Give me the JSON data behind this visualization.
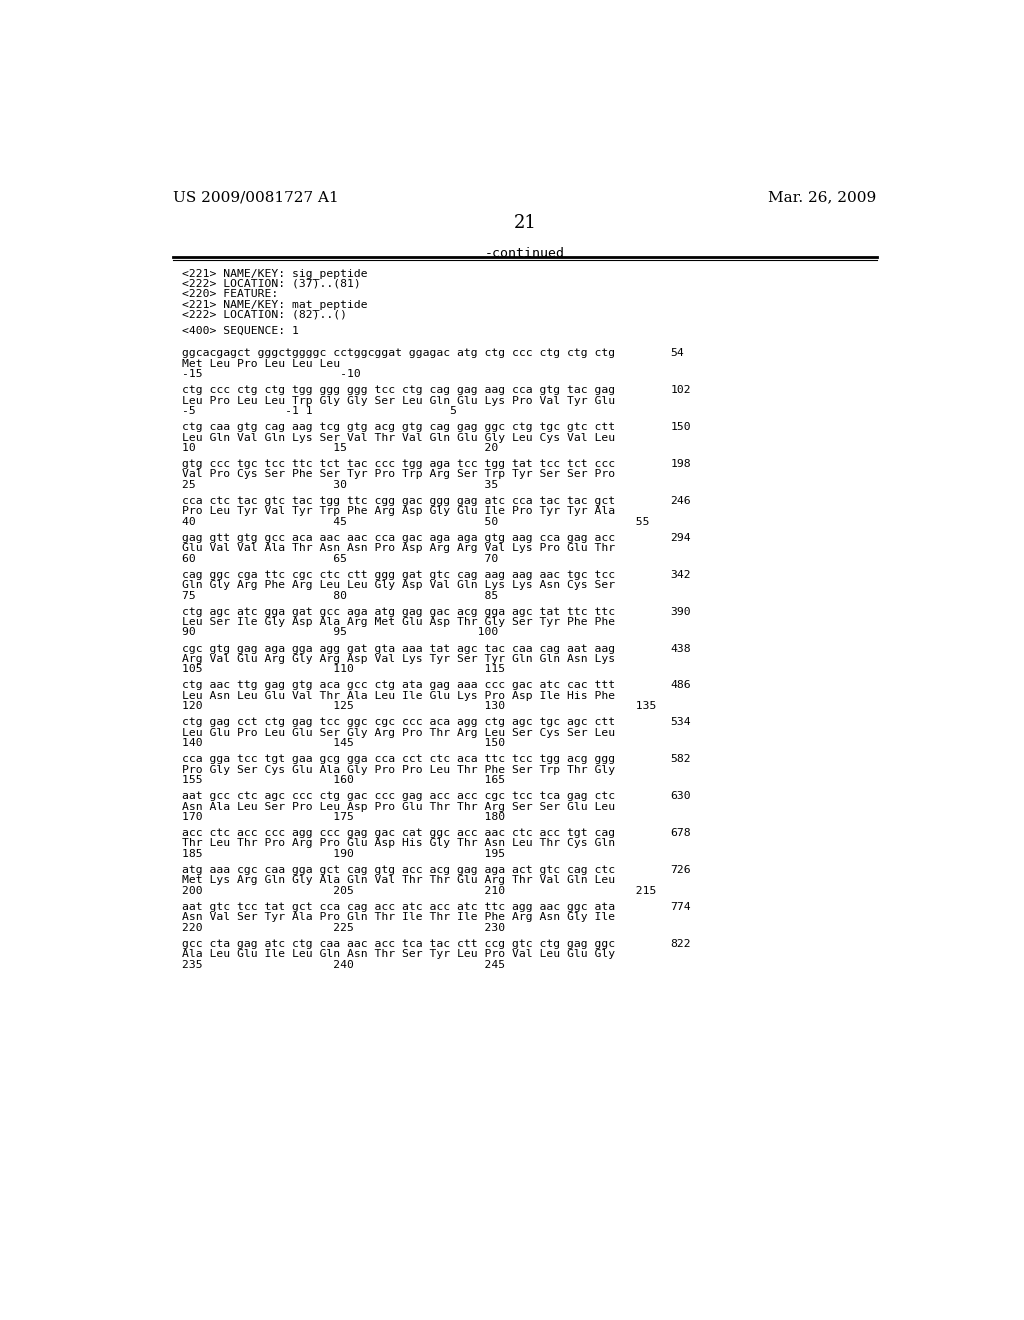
{
  "header_left": "US 2009/0081727 A1",
  "header_right": "Mar. 26, 2009",
  "page_number": "21",
  "continued_text": "-continued",
  "background_color": "#ffffff",
  "text_color": "#000000",
  "blocks": [
    {
      "dna": "ggcacgagct gggctggggc cctggcggat ggagac atg ctg ccc ctg ctg ctg",
      "num": "54",
      "aa": "Met Leu Pro Leu Leu Leu",
      "pos": "-15                    -10"
    },
    {
      "dna": "ctg ccc ctg ctg tgg ggg ggg tcc ctg cag gag aag cca gtg tac gag",
      "num": "102",
      "aa": "Leu Pro Leu Leu Trp Gly Gly Ser Leu Gln Glu Lys Pro Val Tyr Glu",
      "pos": "-5             -1 1                    5"
    },
    {
      "dna": "ctg caa gtg cag aag tcg gtg acg gtg cag gag ggc ctg tgc gtc ctt",
      "num": "150",
      "aa": "Leu Gln Val Gln Lys Ser Val Thr Val Gln Glu Gly Leu Cys Val Leu",
      "pos": "10                    15                    20"
    },
    {
      "dna": "gtg ccc tgc tcc ttc tct tac ccc tgg aga tcc tgg tat tcc tct ccc",
      "num": "198",
      "aa": "Val Pro Cys Ser Phe Ser Tyr Pro Trp Arg Ser Trp Tyr Ser Ser Pro",
      "pos": "25                    30                    35"
    },
    {
      "dna": "cca ctc tac gtc tac tgg ttc cgg gac ggg gag atc cca tac tac gct",
      "num": "246",
      "aa": "Pro Leu Tyr Val Tyr Trp Phe Arg Asp Gly Glu Ile Pro Tyr Tyr Ala",
      "pos": "40                    45                    50                    55"
    },
    {
      "dna": "gag gtt gtg gcc aca aac aac cca gac aga aga gtg aag cca gag acc",
      "num": "294",
      "aa": "Glu Val Val Ala Thr Asn Asn Pro Asp Arg Arg Val Lys Pro Glu Thr",
      "pos": "60                    65                    70"
    },
    {
      "dna": "cag ggc cga ttc cgc ctc ctt ggg gat gtc cag aag aag aac tgc tcc",
      "num": "342",
      "aa": "Gln Gly Arg Phe Arg Leu Leu Gly Asp Val Gln Lys Lys Asn Cys Ser",
      "pos": "75                    80                    85"
    },
    {
      "dna": "ctg agc atc gga gat gcc aga atg gag gac acg gga agc tat ttc ttc",
      "num": "390",
      "aa": "Leu Ser Ile Gly Asp Ala Arg Met Glu Asp Thr Gly Ser Tyr Phe Phe",
      "pos": "90                    95                   100"
    },
    {
      "dna": "cgc gtg gag aga gga agg gat gta aaa tat agc tac caa cag aat aag",
      "num": "438",
      "aa": "Arg Val Glu Arg Gly Arg Asp Val Lys Tyr Ser Tyr Gln Gln Asn Lys",
      "pos": "105                   110                   115"
    },
    {
      "dna": "ctg aac ttg gag gtg aca gcc ctg ata gag aaa ccc gac atc cac ttt",
      "num": "486",
      "aa": "Leu Asn Leu Glu Val Thr Ala Leu Ile Glu Lys Pro Asp Ile His Phe",
      "pos": "120                   125                   130                   135"
    },
    {
      "dna": "ctg gag cct ctg gag tcc ggc cgc ccc aca agg ctg agc tgc agc ctt",
      "num": "534",
      "aa": "Leu Glu Pro Leu Glu Ser Gly Arg Pro Thr Arg Leu Ser Cys Ser Leu",
      "pos": "140                   145                   150"
    },
    {
      "dna": "cca gga tcc tgt gaa gcg gga cca cct ctc aca ttc tcc tgg acg ggg",
      "num": "582",
      "aa": "Pro Gly Ser Cys Glu Ala Gly Pro Pro Leu Thr Phe Ser Trp Thr Gly",
      "pos": "155                   160                   165"
    },
    {
      "dna": "aat gcc ctc agc ccc ctg gac ccc gag acc acc cgc tcc tca gag ctc",
      "num": "630",
      "aa": "Asn Ala Leu Ser Pro Leu Asp Pro Glu Thr Thr Arg Ser Ser Glu Leu",
      "pos": "170                   175                   180"
    },
    {
      "dna": "acc ctc acc ccc agg ccc gag gac cat ggc acc aac ctc acc tgt cag",
      "num": "678",
      "aa": "Thr Leu Thr Pro Arg Pro Glu Asp His Gly Thr Asn Leu Thr Cys Gln",
      "pos": "185                   190                   195"
    },
    {
      "dna": "atg aaa cgc caa gga gct cag gtg acc acg gag aga act gtc cag ctc",
      "num": "726",
      "aa": "Met Lys Arg Gln Gly Ala Gln Val Thr Thr Glu Arg Thr Val Gln Leu",
      "pos": "200                   205                   210                   215"
    },
    {
      "dna": "aat gtc tcc tat gct cca cag acc atc acc atc ttc agg aac ggc ata",
      "num": "774",
      "aa": "Asn Val Ser Tyr Ala Pro Gln Thr Ile Thr Ile Phe Arg Asn Gly Ile",
      "pos": "220                   225                   230"
    },
    {
      "dna": "gcc cta gag atc ctg caa aac acc tca tac ctt ccg gtc ctg gag ggc",
      "num": "822",
      "aa": "Ala Leu Glu Ile Leu Gln Asn Thr Ser Tyr Leu Pro Val Leu Glu Gly",
      "pos": "235                   240                   245"
    }
  ],
  "header_lines": [
    "<221> NAME/KEY: sig_peptide",
    "<222> LOCATION: (37)..(81)",
    "<220> FEATURE:",
    "<221> NAME/KEY: mat_peptide",
    "<222> LOCATION: (82)..()"
  ],
  "seq_label": "<400> SEQUENCE: 1"
}
